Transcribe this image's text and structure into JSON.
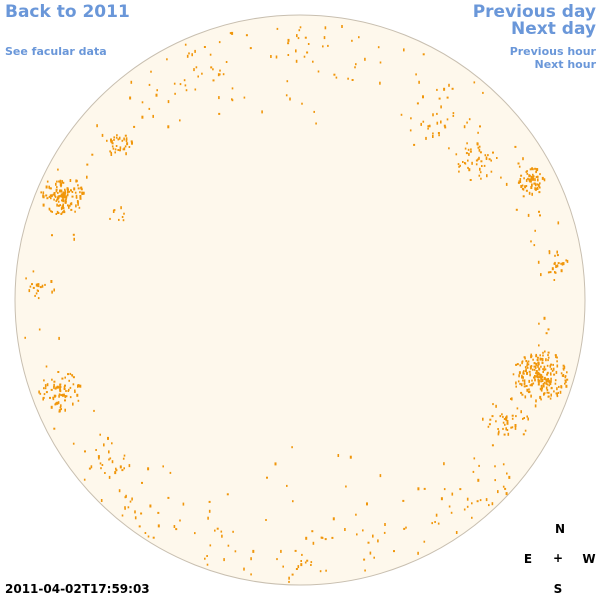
{
  "nav": {
    "back_label": "Back to 2011",
    "facular_label": "See facular data",
    "prev_day_label": "Previous day",
    "next_day_label": "Next day",
    "prev_hour_label": "Previous hour",
    "next_hour_label": "Next hour"
  },
  "timestamp": "2011-04-02T17:59:03",
  "compass": {
    "north": "N",
    "east": "E",
    "center": "+",
    "west": "W",
    "south": "S"
  },
  "colors": {
    "link": "#6a97d9",
    "disk_fill": "#fef8ec",
    "disk_edge": "#c8bfb0",
    "facula": "#f0960a"
  }
}
